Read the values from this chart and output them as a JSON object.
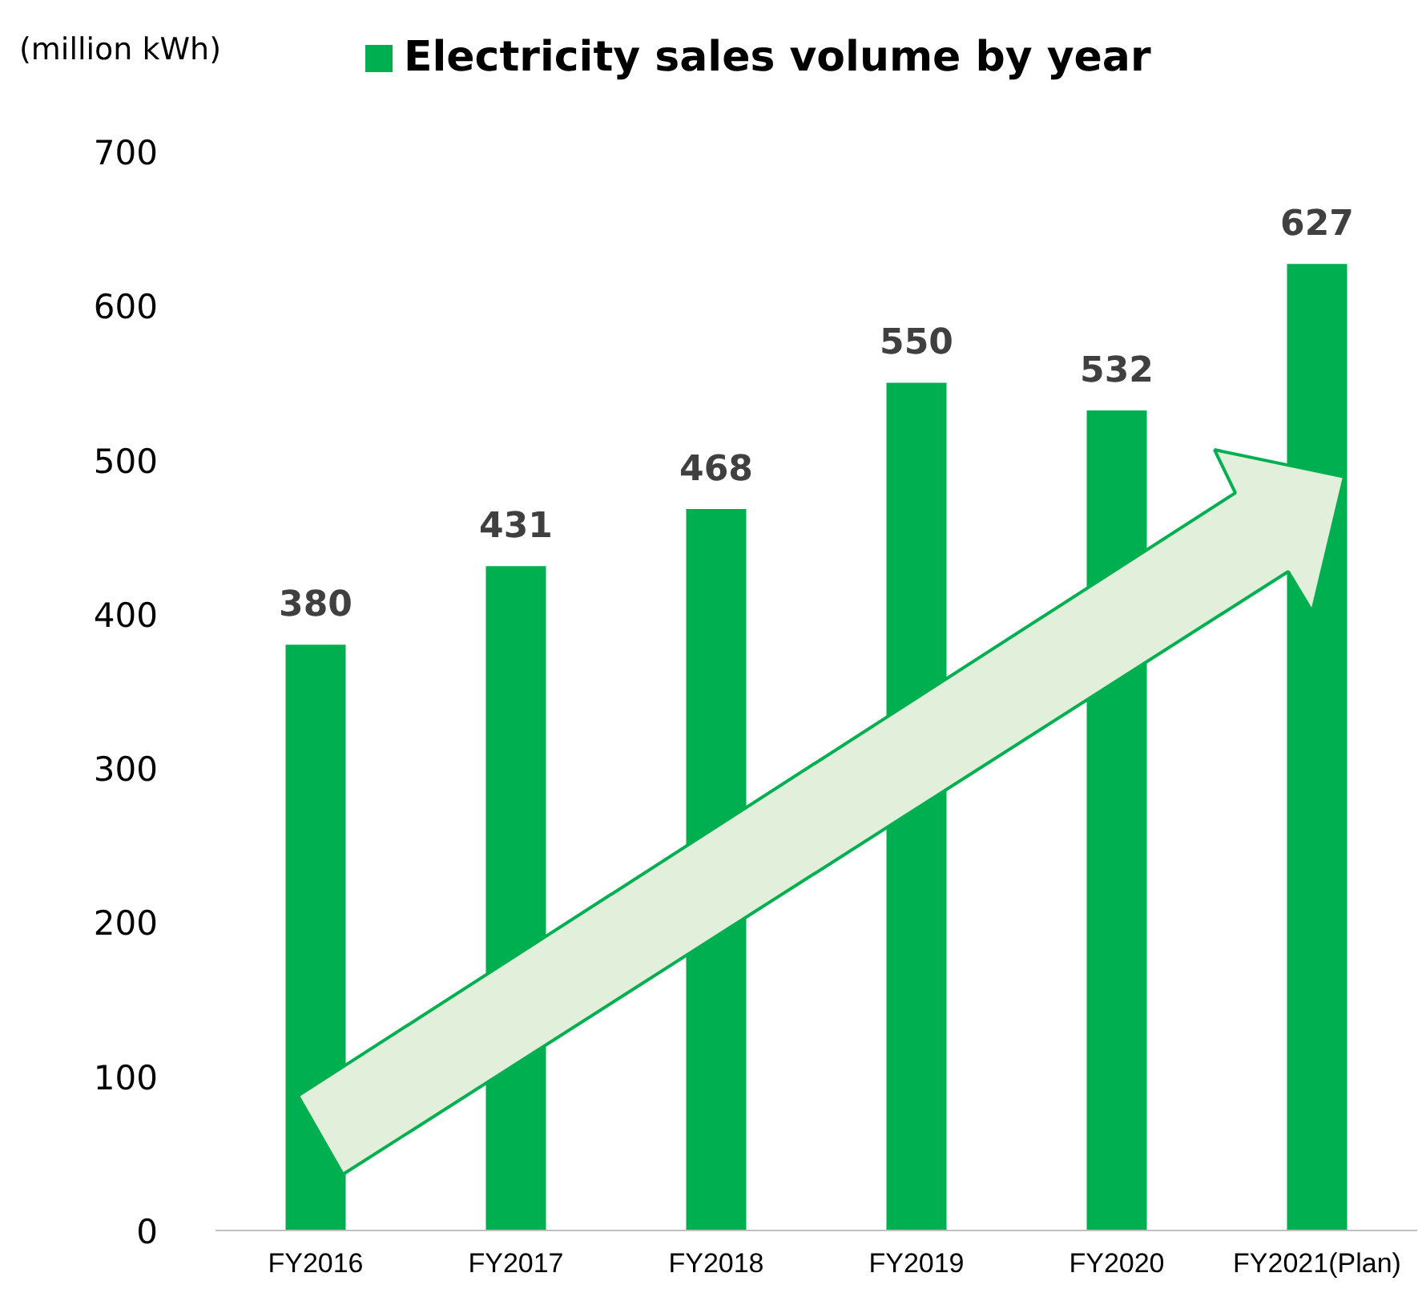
{
  "chart_data": {
    "type": "bar",
    "ylabel": "(million kWh)",
    "categories": [
      "FY2016",
      "FY2017",
      "FY2018",
      "FY2019",
      "FY2020",
      "FY2021(Plan)"
    ],
    "series": [
      {
        "name": "Electricity sales volume by year",
        "color": "#00b050",
        "values": [
          380,
          431,
          468,
          550,
          532,
          627
        ]
      }
    ],
    "ylim": [
      0,
      700
    ],
    "yticks": [
      0,
      100,
      200,
      300,
      400,
      500,
      600,
      700
    ],
    "data_labels": true,
    "grid": false,
    "legend": "top"
  }
}
